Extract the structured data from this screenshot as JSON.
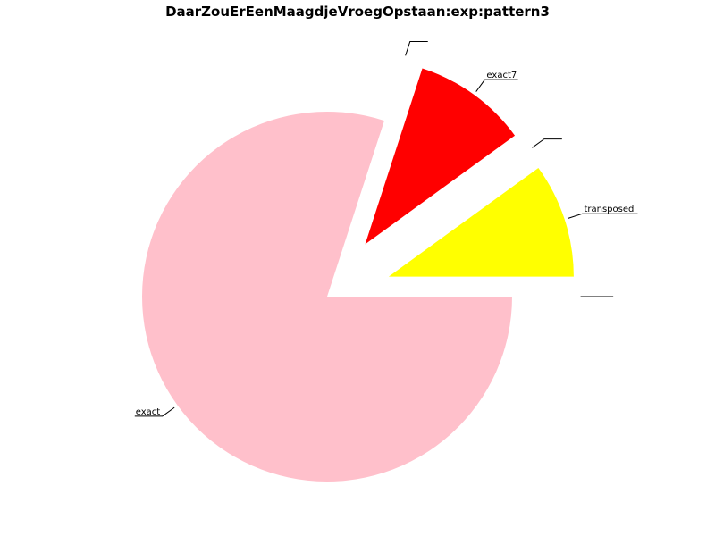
{
  "chart_data": {
    "type": "pie",
    "title": "DaarZouErEenMaagdjeVroegOpstaan:exp:pattern3",
    "start_angle_deg": 0,
    "direction": "counterclockwise",
    "slices": [
      {
        "label": "",
        "value": 0,
        "color": "#000000",
        "exploded": true
      },
      {
        "label": "transposed",
        "value": 1,
        "color": "#ffff00",
        "exploded": true
      },
      {
        "label": "",
        "value": 0,
        "color": "#000000",
        "exploded": true
      },
      {
        "label": "exact7",
        "value": 1,
        "color": "#ff0000",
        "exploded": true
      },
      {
        "label": "",
        "value": 0,
        "color": "#000000",
        "exploded": true
      },
      {
        "label": "exact",
        "value": 8,
        "color": "#ffc0cb",
        "exploded": false
      }
    ]
  }
}
